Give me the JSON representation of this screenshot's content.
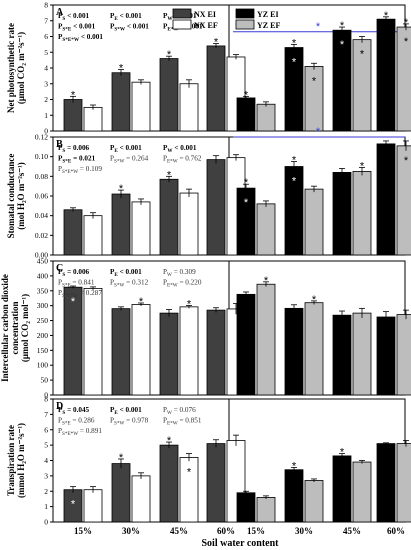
{
  "figure": {
    "x_axis_title": "Soil water content",
    "legend": [
      {
        "label": "NX EI",
        "color": "#404040"
      },
      {
        "label": "NX EF",
        "color": "#ffffff"
      },
      {
        "label": "YZ EI",
        "color": "#000000"
      },
      {
        "label": "YZ EF",
        "color": "#bdbdbd"
      }
    ],
    "star_color": "#3a3ad6",
    "line_color": "#3a3ad6"
  },
  "chart_data": [
    {
      "type": "bar",
      "panel": "A",
      "ylabel": "Net photosynthetic rate (μmol CO₂ m⁻²s⁻¹)",
      "ylim": [
        0,
        8
      ],
      "yticks": [
        "0",
        "1",
        "2",
        "3",
        "4",
        "5",
        "6",
        "7",
        "8"
      ],
      "categories": [
        "15%",
        "30%",
        "45%",
        "60%",
        "15%",
        "30%",
        "45%",
        "60%"
      ],
      "series": [
        {
          "name": "NX EI",
          "values": [
            2.0,
            3.7,
            4.6,
            5.4,
            null,
            null,
            null,
            null
          ]
        },
        {
          "name": "NX EF",
          "values": [
            1.5,
            3.1,
            3.0,
            4.7,
            null,
            null,
            null,
            null
          ]
        },
        {
          "name": "YZ EI",
          "values": [
            null,
            null,
            null,
            null,
            2.1,
            5.3,
            6.4,
            7.1
          ]
        },
        {
          "name": "YZ EF",
          "values": [
            null,
            null,
            null,
            null,
            1.7,
            4.1,
            5.8,
            6.6
          ]
        }
      ],
      "errors": [
        [
          0.2,
          0.2,
          0.15,
          0.15,
          null,
          null,
          null,
          null
        ],
        [
          0.15,
          0.15,
          0.25,
          0.15,
          null,
          null,
          null,
          null
        ],
        [
          null,
          null,
          null,
          null,
          0.1,
          0.2,
          0.2,
          0.15
        ],
        [
          null,
          null,
          null,
          null,
          0.15,
          0.2,
          0.2,
          0.2
        ]
      ],
      "stars": [
        [
          "top",
          0,
          0
        ],
        [
          "top",
          0,
          1
        ],
        [
          "top",
          0,
          2
        ],
        [
          "top",
          0,
          3
        ],
        [
          "top",
          2,
          4
        ],
        [
          "top",
          2,
          5
        ],
        [
          "in",
          2,
          5
        ],
        [
          "in",
          3,
          5
        ],
        [
          "top",
          2,
          6
        ],
        [
          "in",
          2,
          6
        ],
        [
          "in",
          3,
          6
        ],
        [
          "top",
          2,
          7
        ],
        [
          "top",
          3,
          7
        ],
        [
          "in",
          3,
          7
        ]
      ],
      "ref_line": 6.3,
      "stats": [
        {
          "row": 0,
          "col": 0,
          "text": "P_S < 0.001",
          "bold": true
        },
        {
          "row": 0,
          "col": 1,
          "text": "P_E < 0.001",
          "bold": true
        },
        {
          "row": 0,
          "col": 2,
          "text": "P_W < 0.001",
          "bold": true
        },
        {
          "row": 1,
          "col": 0,
          "text": "P_S*E < 0.001",
          "bold": true
        },
        {
          "row": 1,
          "col": 1,
          "text": "P_S*W < 0.001",
          "bold": true
        },
        {
          "row": 1,
          "col": 2,
          "text": "P_E*W < 0.001",
          "bold": true
        },
        {
          "row": 2,
          "col": 0,
          "text": "P_S*E*W < 0.001",
          "bold": true
        }
      ]
    },
    {
      "type": "bar",
      "panel": "B",
      "ylabel": "Stomatal conductance (mol H₂O m⁻²s⁻¹)",
      "ylim": [
        0,
        0.12
      ],
      "yticks": [
        "0.00",
        "0.02",
        "0.04",
        "0.06",
        "0.08",
        "0.10",
        "0.12"
      ],
      "categories": [
        "15%",
        "30%",
        "45%",
        "60%",
        "15%",
        "30%",
        "45%",
        "60%"
      ],
      "series": [
        {
          "name": "NX EI",
          "values": [
            0.046,
            0.062,
            0.077,
            0.097,
            null,
            null,
            null,
            null
          ]
        },
        {
          "name": "NX EF",
          "values": [
            0.04,
            0.054,
            0.063,
            0.099,
            null,
            null,
            null,
            null
          ]
        },
        {
          "name": "YZ EI",
          "values": [
            null,
            null,
            null,
            null,
            0.068,
            0.09,
            0.084,
            0.113
          ]
        },
        {
          "name": "YZ EF",
          "values": [
            null,
            null,
            null,
            null,
            0.052,
            0.067,
            0.085,
            0.111
          ]
        }
      ],
      "errors": [
        [
          0.002,
          0.004,
          0.003,
          0.004,
          null,
          null,
          null,
          null
        ],
        [
          0.003,
          0.003,
          0.004,
          0.003,
          null,
          null,
          null,
          null
        ],
        [
          null,
          null,
          null,
          null,
          0.004,
          0.005,
          0.004,
          0.003
        ],
        [
          null,
          null,
          null,
          null,
          0.003,
          0.003,
          0.004,
          0.005
        ]
      ],
      "stars": [
        [
          "top",
          0,
          1
        ],
        [
          "top",
          0,
          2
        ],
        [
          "top",
          2,
          4
        ],
        [
          "in",
          2,
          4
        ],
        [
          "top",
          2,
          5
        ],
        [
          "in",
          2,
          5
        ],
        [
          "top",
          3,
          6
        ],
        [
          "in",
          3,
          7
        ]
      ],
      "ref_line": 0.12,
      "stats": [
        {
          "row": 0,
          "col": 0,
          "text": "P_S = 0.006",
          "bold": true
        },
        {
          "row": 0,
          "col": 1,
          "text": "P_E < 0.001",
          "bold": true
        },
        {
          "row": 0,
          "col": 2,
          "text": "P_W < 0.001",
          "bold": true
        },
        {
          "row": 1,
          "col": 0,
          "text": "P_S*E = 0.021",
          "bold": true
        },
        {
          "row": 1,
          "col": 1,
          "text": "P_S*W = 0.264",
          "bold": false
        },
        {
          "row": 1,
          "col": 2,
          "text": "P_E*W = 0.762",
          "bold": false
        },
        {
          "row": 2,
          "col": 0,
          "text": "P_S*E*W = 0.109",
          "bold": false
        }
      ]
    },
    {
      "type": "bar",
      "panel": "C",
      "ylabel": "Intercellular carbon dioxide concentration (μmol CO₂ mol⁻¹)",
      "ylim": [
        0,
        450
      ],
      "yticks": [
        "0",
        "50",
        "100",
        "150",
        "200",
        "250",
        "300",
        "350",
        "400",
        "450"
      ],
      "categories": [
        "15%",
        "30%",
        "45%",
        "60%",
        "15%",
        "30%",
        "45%",
        "60%"
      ],
      "series": [
        {
          "name": "NX EI",
          "values": [
            362,
            290,
            275,
            285,
            null,
            null,
            null,
            null
          ]
        },
        {
          "name": "NX EF",
          "values": [
            358,
            304,
            296,
            289,
            null,
            null,
            null,
            null
          ]
        },
        {
          "name": "YZ EI",
          "values": [
            null,
            null,
            null,
            null,
            338,
            291,
            268,
            262
          ]
        },
        {
          "name": "YZ EF",
          "values": [
            null,
            null,
            null,
            null,
            372,
            310,
            275,
            270
          ]
        }
      ],
      "errors": [
        [
          4,
          6,
          12,
          8,
          null,
          null,
          null,
          null
        ],
        [
          5,
          5,
          5,
          18,
          null,
          null,
          null,
          null
        ],
        [
          null,
          null,
          null,
          null,
          8,
          12,
          14,
          18
        ],
        [
          null,
          null,
          null,
          null,
          8,
          6,
          16,
          15
        ]
      ],
      "stars": [
        [
          "in",
          0,
          0
        ],
        [
          "top",
          1,
          1
        ],
        [
          "top",
          1,
          2
        ],
        [
          "top",
          3,
          4
        ],
        [
          "top",
          3,
          5
        ]
      ],
      "ref_line": null,
      "stats": [
        {
          "row": 0,
          "col": 0,
          "text": "P_S = 0.006",
          "bold": true
        },
        {
          "row": 0,
          "col": 1,
          "text": "P_E < 0.001",
          "bold": true
        },
        {
          "row": 0,
          "col": 2,
          "text": "P_W = 0.309",
          "bold": false
        },
        {
          "row": 1,
          "col": 0,
          "text": "P_S*E = 0.841",
          "bold": false
        },
        {
          "row": 1,
          "col": 1,
          "text": "P_S*W = 0.312",
          "bold": false
        },
        {
          "row": 1,
          "col": 2,
          "text": "P_E*W = 0.220",
          "bold": false
        },
        {
          "row": 2,
          "col": 0,
          "text": "P_S*E*W = 0.287",
          "bold": false
        }
      ]
    },
    {
      "type": "bar",
      "panel": "D",
      "ylabel": "Transpiration rate (mmol H₂O m⁻²s⁻¹)",
      "ylim": [
        0,
        8
      ],
      "yticks": [
        "0",
        "1",
        "2",
        "3",
        "4",
        "5",
        "6",
        "7",
        "8"
      ],
      "categories": [
        "15%",
        "30%",
        "45%",
        "60%",
        "15%",
        "30%",
        "45%",
        "60%"
      ],
      "series": [
        {
          "name": "NX EI",
          "values": [
            2.1,
            3.8,
            5.0,
            5.1,
            null,
            null,
            null,
            null
          ]
        },
        {
          "name": "NX EF",
          "values": [
            2.1,
            3.0,
            4.2,
            5.3,
            null,
            null,
            null,
            null
          ]
        },
        {
          "name": "YZ EI",
          "values": [
            null,
            null,
            null,
            null,
            1.9,
            3.4,
            4.3,
            5.1
          ]
        },
        {
          "name": "YZ EF",
          "values": [
            null,
            null,
            null,
            null,
            1.6,
            2.7,
            3.9,
            5.1
          ]
        }
      ],
      "errors": [
        [
          0.2,
          0.3,
          0.2,
          0.25,
          null,
          null,
          null,
          null
        ],
        [
          0.2,
          0.2,
          0.25,
          0.35,
          null,
          null,
          null,
          null
        ],
        [
          null,
          null,
          null,
          null,
          0.1,
          0.15,
          0.15,
          0.05
        ],
        [
          null,
          null,
          null,
          null,
          0.1,
          0.1,
          0.1,
          0.2
        ]
      ],
      "stars": [
        [
          "in",
          0,
          0
        ],
        [
          "top",
          0,
          1
        ],
        [
          "top",
          0,
          2
        ],
        [
          "in",
          1,
          2
        ],
        [
          "top",
          2,
          5
        ],
        [
          "top",
          2,
          6
        ]
      ],
      "ref_line": null,
      "stats": [
        {
          "row": 0,
          "col": 0,
          "text": "P_S = 0.045",
          "bold": true
        },
        {
          "row": 0,
          "col": 1,
          "text": "P_E < 0.001",
          "bold": true
        },
        {
          "row": 0,
          "col": 2,
          "text": "P_W = 0.076",
          "bold": false
        },
        {
          "row": 1,
          "col": 0,
          "text": "P_S*E = 0.286",
          "bold": false
        },
        {
          "row": 1,
          "col": 1,
          "text": "P_S*W = 0.978",
          "bold": false
        },
        {
          "row": 1,
          "col": 2,
          "text": "P_E*W = 0.851",
          "bold": false
        },
        {
          "row": 2,
          "col": 0,
          "text": "P_S*E*W = 0.891",
          "bold": false
        }
      ]
    }
  ]
}
